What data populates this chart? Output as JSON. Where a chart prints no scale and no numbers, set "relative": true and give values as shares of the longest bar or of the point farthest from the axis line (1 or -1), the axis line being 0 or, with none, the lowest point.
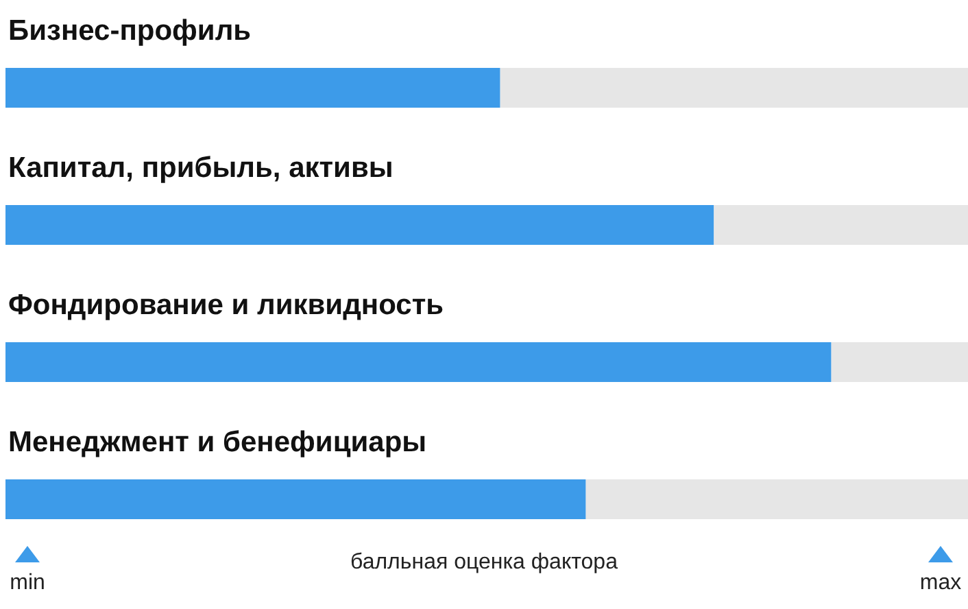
{
  "chart_data": {
    "type": "bar",
    "orientation": "horizontal",
    "stacked": true,
    "relative": true,
    "categories": [
      "Бизнес-профиль",
      "Капитал, прибыль, активы",
      "Фондирование и ликвидность",
      "Менеджмент и бенефициары"
    ],
    "series": [
      {
        "color": "#3d9be9",
        "values": [
          0.514,
          0.736,
          0.858,
          0.603
        ]
      },
      {
        "color": "#e6e6e6",
        "values": [
          0.486,
          0.264,
          0.142,
          0.397
        ]
      }
    ],
    "xlabel": "балльная оценка фактора",
    "annotations": [
      "min",
      "max"
    ]
  }
}
